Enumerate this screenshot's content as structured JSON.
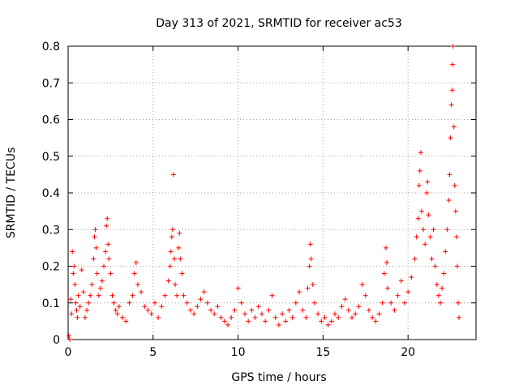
{
  "chart_data": {
    "type": "scatter",
    "title": "Day 313 of 2021, SRMTID for receiver ac53",
    "xlabel": "GPS time / hours",
    "ylabel": "SRMTID / TECUs",
    "xlim": [
      0,
      24
    ],
    "ylim": [
      0,
      0.8
    ],
    "x_ticks": [
      0,
      5,
      10,
      15,
      20
    ],
    "y_ticks": [
      0,
      0.1,
      0.2,
      0.3,
      0.4,
      0.5,
      0.6,
      0.7,
      0.8
    ],
    "x_tick_labels": [
      "0",
      "5",
      "10",
      "15",
      "20"
    ],
    "y_tick_labels": [
      "0",
      "0.1",
      "0.2",
      "0.3",
      "0.4",
      "0.5",
      "0.6",
      "0.7",
      "0.8"
    ],
    "grid": true,
    "marker": "+",
    "marker_color": "#ff0000",
    "series": [
      {
        "name": "ac53",
        "points": [
          [
            0.05,
            0.01
          ],
          [
            0.1,
            0.0
          ],
          [
            0.15,
            0.11
          ],
          [
            0.2,
            0.07
          ],
          [
            0.25,
            0.24
          ],
          [
            0.3,
            0.18
          ],
          [
            0.35,
            0.2
          ],
          [
            0.4,
            0.15
          ],
          [
            0.45,
            0.1
          ],
          [
            0.5,
            0.08
          ],
          [
            0.55,
            0.06
          ],
          [
            0.6,
            0.12
          ],
          [
            0.7,
            0.09
          ],
          [
            0.8,
            0.19
          ],
          [
            0.9,
            0.13
          ],
          [
            1.0,
            0.06
          ],
          [
            1.1,
            0.08
          ],
          [
            1.2,
            0.1
          ],
          [
            1.3,
            0.12
          ],
          [
            1.4,
            0.15
          ],
          [
            1.5,
            0.22
          ],
          [
            1.55,
            0.28
          ],
          [
            1.6,
            0.3
          ],
          [
            1.65,
            0.25
          ],
          [
            1.7,
            0.18
          ],
          [
            1.8,
            0.12
          ],
          [
            1.9,
            0.14
          ],
          [
            2.0,
            0.16
          ],
          [
            2.1,
            0.2
          ],
          [
            2.2,
            0.24
          ],
          [
            2.25,
            0.31
          ],
          [
            2.3,
            0.33
          ],
          [
            2.35,
            0.26
          ],
          [
            2.4,
            0.22
          ],
          [
            2.5,
            0.18
          ],
          [
            2.6,
            0.12
          ],
          [
            2.7,
            0.1
          ],
          [
            2.8,
            0.08
          ],
          [
            2.9,
            0.07
          ],
          [
            3.0,
            0.09
          ],
          [
            3.2,
            0.06
          ],
          [
            3.4,
            0.05
          ],
          [
            3.6,
            0.1
          ],
          [
            3.8,
            0.12
          ],
          [
            3.9,
            0.18
          ],
          [
            4.0,
            0.21
          ],
          [
            4.1,
            0.15
          ],
          [
            4.3,
            0.13
          ],
          [
            4.5,
            0.09
          ],
          [
            4.7,
            0.08
          ],
          [
            4.9,
            0.07
          ],
          [
            5.1,
            0.1
          ],
          [
            5.3,
            0.06
          ],
          [
            5.5,
            0.09
          ],
          [
            5.7,
            0.12
          ],
          [
            5.9,
            0.16
          ],
          [
            6.0,
            0.2
          ],
          [
            6.05,
            0.24
          ],
          [
            6.1,
            0.28
          ],
          [
            6.15,
            0.3
          ],
          [
            6.2,
            0.45
          ],
          [
            6.25,
            0.22
          ],
          [
            6.3,
            0.15
          ],
          [
            6.4,
            0.12
          ],
          [
            6.5,
            0.25
          ],
          [
            6.55,
            0.29
          ],
          [
            6.6,
            0.22
          ],
          [
            6.7,
            0.18
          ],
          [
            6.8,
            0.12
          ],
          [
            7.0,
            0.1
          ],
          [
            7.2,
            0.08
          ],
          [
            7.4,
            0.07
          ],
          [
            7.6,
            0.09
          ],
          [
            7.8,
            0.11
          ],
          [
            8.0,
            0.13
          ],
          [
            8.2,
            0.1
          ],
          [
            8.4,
            0.08
          ],
          [
            8.6,
            0.07
          ],
          [
            8.8,
            0.09
          ],
          [
            9.0,
            0.06
          ],
          [
            9.2,
            0.05
          ],
          [
            9.4,
            0.04
          ],
          [
            9.6,
            0.06
          ],
          [
            9.8,
            0.08
          ],
          [
            10.0,
            0.14
          ],
          [
            10.2,
            0.1
          ],
          [
            10.4,
            0.07
          ],
          [
            10.6,
            0.05
          ],
          [
            10.8,
            0.08
          ],
          [
            11.0,
            0.06
          ],
          [
            11.2,
            0.09
          ],
          [
            11.4,
            0.07
          ],
          [
            11.6,
            0.05
          ],
          [
            11.8,
            0.08
          ],
          [
            12.0,
            0.12
          ],
          [
            12.2,
            0.06
          ],
          [
            12.4,
            0.04
          ],
          [
            12.6,
            0.07
          ],
          [
            12.8,
            0.05
          ],
          [
            13.0,
            0.08
          ],
          [
            13.2,
            0.06
          ],
          [
            13.4,
            0.1
          ],
          [
            13.6,
            0.13
          ],
          [
            13.8,
            0.08
          ],
          [
            14.0,
            0.06
          ],
          [
            14.1,
            0.14
          ],
          [
            14.2,
            0.2
          ],
          [
            14.25,
            0.26
          ],
          [
            14.3,
            0.22
          ],
          [
            14.4,
            0.15
          ],
          [
            14.5,
            0.1
          ],
          [
            14.7,
            0.07
          ],
          [
            14.9,
            0.05
          ],
          [
            15.1,
            0.06
          ],
          [
            15.3,
            0.04
          ],
          [
            15.5,
            0.05
          ],
          [
            15.7,
            0.07
          ],
          [
            15.9,
            0.06
          ],
          [
            16.1,
            0.09
          ],
          [
            16.3,
            0.11
          ],
          [
            16.5,
            0.08
          ],
          [
            16.7,
            0.06
          ],
          [
            16.9,
            0.07
          ],
          [
            17.1,
            0.09
          ],
          [
            17.3,
            0.15
          ],
          [
            17.5,
            0.12
          ],
          [
            17.7,
            0.08
          ],
          [
            17.9,
            0.06
          ],
          [
            18.1,
            0.05
          ],
          [
            18.3,
            0.07
          ],
          [
            18.5,
            0.1
          ],
          [
            18.6,
            0.18
          ],
          [
            18.7,
            0.25
          ],
          [
            18.75,
            0.21
          ],
          [
            18.8,
            0.14
          ],
          [
            19.0,
            0.1
          ],
          [
            19.2,
            0.08
          ],
          [
            19.4,
            0.12
          ],
          [
            19.6,
            0.16
          ],
          [
            19.8,
            0.1
          ],
          [
            20.0,
            0.13
          ],
          [
            20.2,
            0.17
          ],
          [
            20.4,
            0.22
          ],
          [
            20.5,
            0.28
          ],
          [
            20.6,
            0.33
          ],
          [
            20.65,
            0.42
          ],
          [
            20.7,
            0.46
          ],
          [
            20.75,
            0.51
          ],
          [
            20.8,
            0.35
          ],
          [
            20.9,
            0.3
          ],
          [
            21.0,
            0.26
          ],
          [
            21.1,
            0.4
          ],
          [
            21.15,
            0.43
          ],
          [
            21.2,
            0.34
          ],
          [
            21.3,
            0.28
          ],
          [
            21.4,
            0.22
          ],
          [
            21.5,
            0.3
          ],
          [
            21.6,
            0.2
          ],
          [
            21.7,
            0.15
          ],
          [
            21.8,
            0.12
          ],
          [
            21.9,
            0.1
          ],
          [
            22.0,
            0.14
          ],
          [
            22.1,
            0.18
          ],
          [
            22.2,
            0.24
          ],
          [
            22.3,
            0.3
          ],
          [
            22.4,
            0.38
          ],
          [
            22.45,
            0.45
          ],
          [
            22.5,
            0.55
          ],
          [
            22.55,
            0.64
          ],
          [
            22.6,
            0.68
          ],
          [
            22.62,
            0.75
          ],
          [
            22.65,
            0.8
          ],
          [
            22.7,
            0.58
          ],
          [
            22.75,
            0.42
          ],
          [
            22.8,
            0.35
          ],
          [
            22.85,
            0.28
          ],
          [
            22.9,
            0.2
          ],
          [
            22.95,
            0.1
          ],
          [
            23.0,
            0.06
          ]
        ]
      }
    ]
  }
}
